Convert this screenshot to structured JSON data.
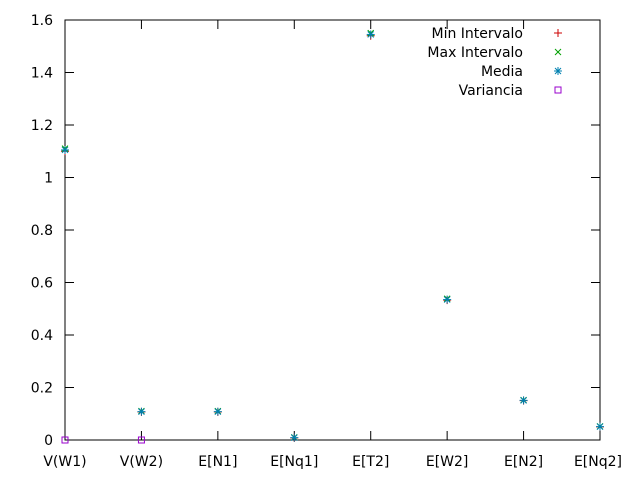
{
  "chart_data": {
    "type": "scatter",
    "categories": [
      "V(W1)",
      "V(W2)",
      "E[N1]",
      "E[Nq1]",
      "E[T2]",
      "E[W2]",
      "E[N2]",
      "E[Nq2]"
    ],
    "ylim": [
      0,
      1.6
    ],
    "yticks": [
      "0",
      "0.2",
      "0.4",
      "0.6",
      "0.8",
      "1",
      "1.2",
      "1.4",
      "1.6"
    ],
    "title": "",
    "xlabel": "",
    "ylabel": "",
    "grid": false,
    "legend_position": "top-right",
    "series": [
      {
        "name": "Min Intervalo",
        "marker": "plus",
        "color": "#cc0000",
        "values": [
          1.1,
          0.107,
          0.107,
          0.008,
          1.54,
          0.533,
          0.15,
          0.05
        ]
      },
      {
        "name": "Max Intervalo",
        "marker": "cross",
        "color": "#00a000",
        "values": [
          1.11,
          0.11,
          0.11,
          0.01,
          1.55,
          0.538,
          0.152,
          0.052
        ]
      },
      {
        "name": "Media",
        "marker": "star",
        "color": "#0080b0",
        "values": [
          1.105,
          0.108,
          0.108,
          0.009,
          1.545,
          0.535,
          0.151,
          0.051
        ]
      },
      {
        "name": "Variancia",
        "marker": "square",
        "color": "#9900cc",
        "values": [
          0.0,
          0.0,
          null,
          null,
          null,
          null,
          null,
          null
        ]
      }
    ]
  }
}
